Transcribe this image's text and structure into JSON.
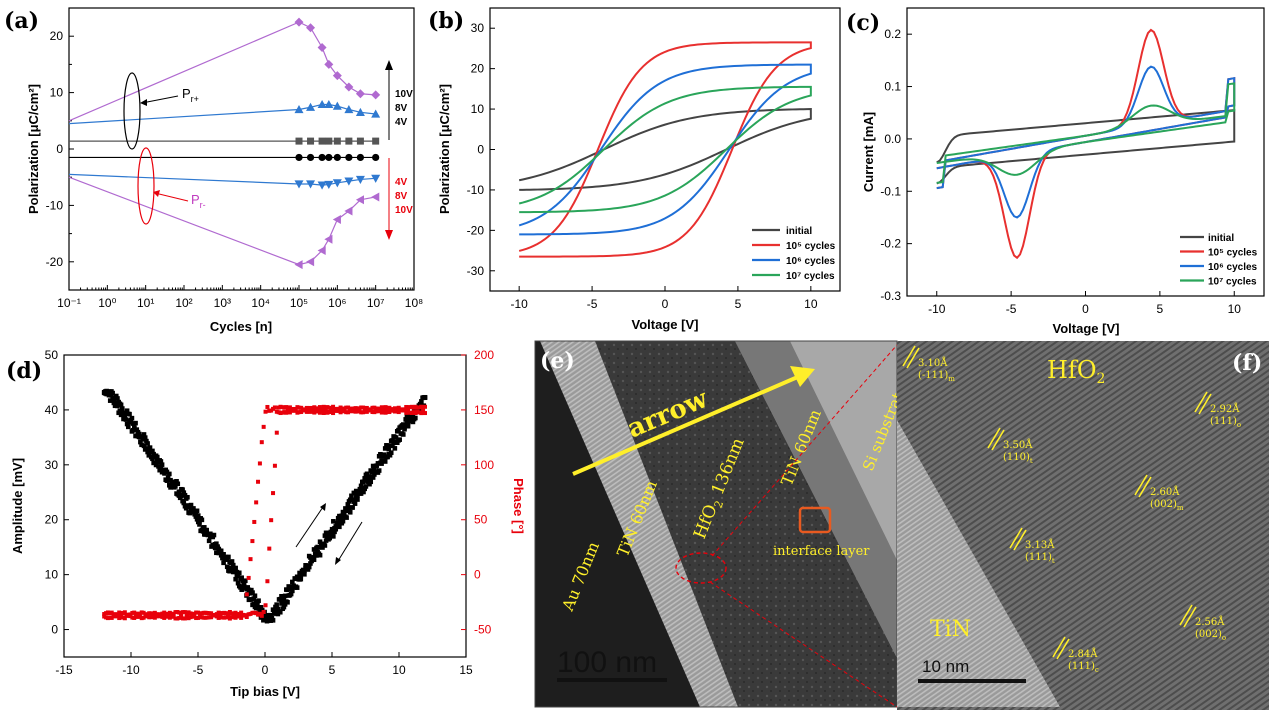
{
  "chart_data": [
    {
      "panel": "(a)",
      "type": "line",
      "xscale": "log",
      "xlabel": "Cycles [n]",
      "ylabel": "Polarization [μC/cm²]",
      "xlim": [
        0.1,
        100000000
      ],
      "ylim": [
        -25,
        25
      ],
      "xticks": [
        "10⁻¹",
        "10⁰",
        "10¹",
        "10²",
        "10³",
        "10⁴",
        "10⁵",
        "10⁶",
        "10⁷",
        "10⁸"
      ],
      "yticks": [
        "-20",
        "-10",
        "0",
        "10",
        "20"
      ],
      "series": [
        {
          "name": "10V Pr+",
          "color": "#b06ad0",
          "marker": "diamond",
          "x": [
            0.1,
            100000,
            200000,
            400000,
            600000,
            1000000,
            2000000,
            4000000,
            10000000
          ],
          "y": [
            5,
            22.5,
            21.5,
            18,
            15,
            13,
            11,
            9.8,
            9.6
          ]
        },
        {
          "name": "8V Pr+",
          "color": "#2f79d0",
          "marker": "triangle-up",
          "x": [
            0.1,
            100000,
            200000,
            400000,
            600000,
            1000000,
            2000000,
            4000000,
            10000000
          ],
          "y": [
            4.5,
            7,
            7.4,
            7.9,
            7.9,
            7.6,
            7,
            6.5,
            6.2
          ]
        },
        {
          "name": "4V Pr+",
          "color": "#555555",
          "marker": "square",
          "x": [
            0.1,
            100000,
            200000,
            400000,
            600000,
            1000000,
            2000000,
            4000000,
            10000000
          ],
          "y": [
            1.4,
            1.4,
            1.4,
            1.4,
            1.4,
            1.4,
            1.4,
            1.4,
            1.4
          ]
        },
        {
          "name": "4V Pr-",
          "color": "#000000",
          "marker": "circle",
          "x": [
            0.1,
            100000,
            200000,
            400000,
            600000,
            1000000,
            2000000,
            4000000,
            10000000
          ],
          "y": [
            -1.5,
            -1.5,
            -1.5,
            -1.5,
            -1.5,
            -1.5,
            -1.5,
            -1.5,
            -1.5
          ]
        },
        {
          "name": "8V Pr-",
          "color": "#2f79d0",
          "marker": "triangle-down",
          "x": [
            0.1,
            100000,
            200000,
            400000,
            600000,
            1000000,
            2000000,
            4000000,
            10000000
          ],
          "y": [
            -4.5,
            -6.2,
            -6.2,
            -6.4,
            -6.3,
            -6,
            -5.7,
            -5.4,
            -5.2
          ]
        },
        {
          "name": "10V Pr-",
          "color": "#b06ad0",
          "marker": "triangle-left",
          "x": [
            0.1,
            100000,
            200000,
            400000,
            600000,
            1000000,
            2000000,
            4000000,
            10000000
          ],
          "y": [
            -5,
            -20.5,
            -20,
            -18,
            -16,
            -12.5,
            -11,
            -9,
            -8.5
          ]
        }
      ],
      "annotations": {
        "pr_plus": "P",
        "pr_plus_sub": "r+",
        "pr_minus": "P",
        "pr_minus_sub": "r-",
        "volts_top": [
          "10V",
          "8V",
          "4V"
        ],
        "volts_bottom": [
          "4V",
          "8V",
          "10V"
        ]
      }
    },
    {
      "panel": "(b)",
      "type": "line",
      "xlabel": "Voltage [V]",
      "ylabel": "Polarization [μC/cm²]",
      "xlim": [
        -12,
        12
      ],
      "ylim": [
        -35,
        35
      ],
      "xticks": [
        "-10",
        "-5",
        "0",
        "5",
        "10"
      ],
      "yticks": [
        "-30",
        "-20",
        "-10",
        "0",
        "10",
        "20",
        "30"
      ],
      "loop_params": [
        {
          "name": "initial",
          "color": "#444444",
          "pr": 4,
          "ps": 10,
          "vc": 4.2,
          "w": 3.8
        },
        {
          "name": "10⁵ cycles",
          "color": "#e8302f",
          "pr": 22,
          "ps": 26.5,
          "vc": 4.6,
          "w": 0.8
        },
        {
          "name": "10⁶ cycles",
          "color": "#1f6fd6",
          "pr": 13.5,
          "ps": 21,
          "vc": 4.4,
          "w": 1.7
        },
        {
          "name": "10⁷ cycles",
          "color": "#2aa55a",
          "pr": 9,
          "ps": 15.5,
          "vc": 4.2,
          "w": 2.3
        }
      ],
      "legend": [
        "initial",
        "10⁵ cycles",
        "10⁶ cycles",
        "10⁷ cycles"
      ]
    },
    {
      "panel": "(c)",
      "type": "line",
      "xlabel": "Voltage [V]",
      "ylabel": "Current [mA]",
      "xlim": [
        -12,
        12
      ],
      "ylim": [
        -0.3,
        0.25
      ],
      "xticks": [
        "-10",
        "-5",
        "0",
        "5",
        "10"
      ],
      "yticks": [
        "-0.3",
        "-0.2",
        "-0.1",
        "0.0",
        "0.1",
        "0.2"
      ],
      "iv_params": [
        {
          "name": "initial",
          "color": "#444444",
          "base": 0.05,
          "slope": 0.002,
          "peak": 0.0,
          "pw": 1.2
        },
        {
          "name": "10⁵ cycles",
          "color": "#e8302f",
          "base": 0.02,
          "slope": 0.005,
          "peak": 0.18,
          "pw": 1.2
        },
        {
          "name": "10⁶ cycles",
          "color": "#1f6fd6",
          "base": 0.02,
          "slope": 0.005,
          "peak": 0.11,
          "pw": 1.2
        },
        {
          "name": "10⁷ cycles",
          "color": "#2aa55a",
          "base": 0.02,
          "slope": 0.004,
          "peak": 0.04,
          "pw": 1.8
        }
      ],
      "legend": [
        "initial",
        "10⁵ cycles",
        "10⁶ cycles",
        "10⁷ cycles"
      ]
    },
    {
      "panel": "(d)",
      "type": "scatter",
      "xlabel": "Tip bias [V]",
      "ylabel": "Amplitude [mV]",
      "y2label": "Phase [°]",
      "xlim": [
        -15,
        15
      ],
      "ylim": [
        -5,
        50
      ],
      "y2lim": [
        -75,
        200
      ],
      "xticks": [
        "-15",
        "-10",
        "-5",
        "0",
        "5",
        "10",
        "15"
      ],
      "yticks": [
        "0",
        "10",
        "20",
        "30",
        "40",
        "50"
      ],
      "y2ticks": [
        "-50",
        "0",
        "50",
        "100",
        "150",
        "200"
      ],
      "series": [
        {
          "name": "Amplitude",
          "color": "#000000",
          "min_v": 0.3,
          "min_a": 1.5,
          "max_a": 43.5
        },
        {
          "name": "Phase",
          "color": "#e8000b",
          "low": -37,
          "high": 150,
          "switch_down": -1.5,
          "switch_up": 1.0
        }
      ]
    }
  ],
  "panel_labels": {
    "a": "(a)",
    "b": "(b)",
    "c": "(c)",
    "d": "(d)",
    "e": "(e)",
    "f": "(f)"
  },
  "tem_e": {
    "arrow": "arrow",
    "au": "Au 70nm",
    "tin": "TiN 60nm",
    "hfo2": "HfO",
    "hfo2_sub": "2",
    "hfo2_rest": " 136nm",
    "tin2": "TiN 60nm",
    "si": "Si substrate",
    "interface": "interface layer",
    "scale": "100  nm"
  },
  "tem_f": {
    "hfo2": "HfO",
    "hfo2_sub": "2",
    "tin": "TiN",
    "scale": "10  nm",
    "spacings": [
      {
        "d": "3.10Å",
        "hkl": "(-111)",
        "sub": "m"
      },
      {
        "d": "2.92Å",
        "hkl": "(111)",
        "sub": "o"
      },
      {
        "d": "3.50Å",
        "hkl": "(110)",
        "sub": "t"
      },
      {
        "d": "2.60Å",
        "hkl": "(002)",
        "sub": "m"
      },
      {
        "d": "3.13Å",
        "hkl": "(111)",
        "sub": "t"
      },
      {
        "d": "2.56Å",
        "hkl": "(002)",
        "sub": "o"
      },
      {
        "d": "2.84Å",
        "hkl": "(111)",
        "sub": "c"
      }
    ]
  },
  "colors": {
    "purple": "#b06ad0",
    "blue": "#2f79d0",
    "red": "#e8302f",
    "green": "#2aa55a",
    "gray": "#444444",
    "yellow": "#ffef2a"
  }
}
